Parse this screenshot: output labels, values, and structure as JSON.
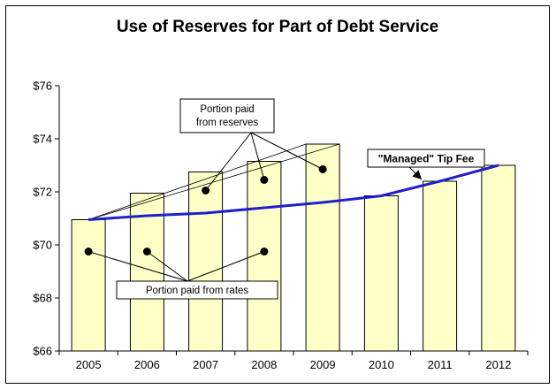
{
  "chart_data": {
    "type": "bar",
    "title": "Use of Reserves for Part of Debt Service",
    "categories": [
      "2005",
      "2006",
      "2007",
      "2008",
      "2009",
      "2010",
      "2011",
      "2012"
    ],
    "values": [
      70.95,
      71.95,
      72.75,
      73.15,
      73.8,
      71.85,
      72.4,
      73.0
    ],
    "series": [
      {
        "name": "\"Managed\" Tip Fee",
        "type": "line",
        "color": "#1f1fcc",
        "values": [
          70.95,
          71.1,
          71.2,
          71.4,
          71.6,
          71.85,
          72.4,
          73.0
        ]
      }
    ],
    "ylim": [
      66,
      76
    ],
    "yticks": [
      "$66",
      "$68",
      "$70",
      "$72",
      "$74",
      "$76"
    ],
    "ytick_values": [
      66,
      68,
      70,
      72,
      74,
      76
    ],
    "xlabel": "",
    "ylabel": "",
    "grid": false,
    "colors": {
      "bar_fill": "#ffffc8",
      "bar_stroke": "#000000",
      "line": "#1f1fcc",
      "marker": "#000000"
    },
    "annotations": {
      "reserves_label": [
        "Portion paid",
        "from reserves"
      ],
      "rates_label": "Portion paid from rates",
      "managed_label": "\"Managed\" Tip Fee",
      "reserves_markers": [
        {
          "category": "2007",
          "y": 72.05
        },
        {
          "category": "2008",
          "y": 72.45
        },
        {
          "category": "2009",
          "y": 72.85
        }
      ],
      "rates_markers": [
        {
          "category": "2005",
          "y": 69.75
        },
        {
          "category": "2006",
          "y": 69.75
        },
        {
          "category": "2008",
          "y": 69.75
        }
      ]
    }
  }
}
